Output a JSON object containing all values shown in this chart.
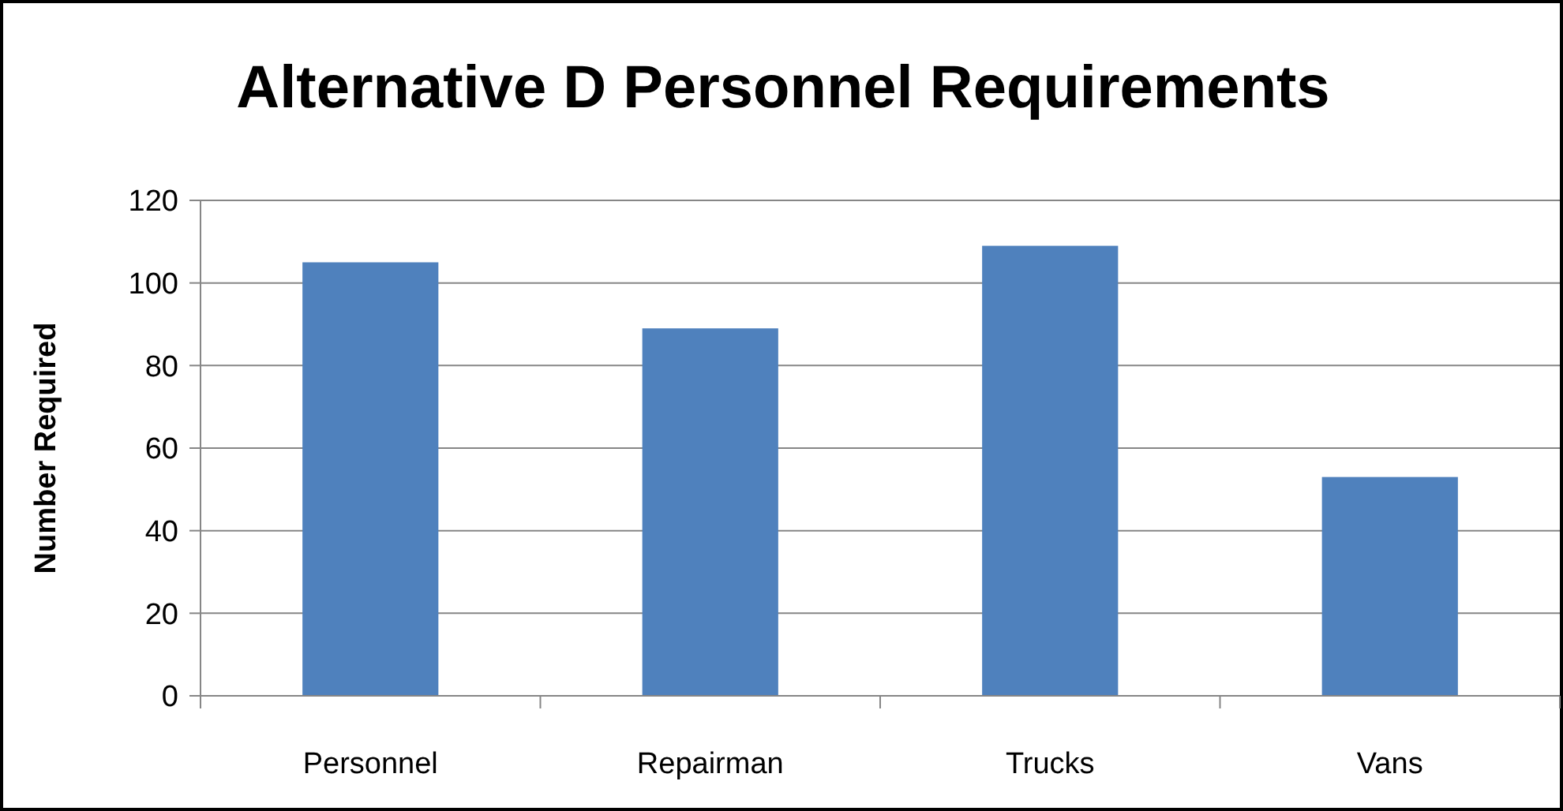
{
  "chart_data": {
    "type": "bar",
    "title": "Alternative D Personnel Requirements",
    "ylabel": "Number Required",
    "categories": [
      "Personnel",
      "Repairman",
      "Trucks",
      "Vans"
    ],
    "values": [
      105,
      89,
      109,
      53
    ],
    "color": "#4f81bd",
    "ylim": [
      0,
      120
    ],
    "yticks": [
      0,
      20,
      40,
      60,
      80,
      100,
      120
    ],
    "grid": "y"
  }
}
